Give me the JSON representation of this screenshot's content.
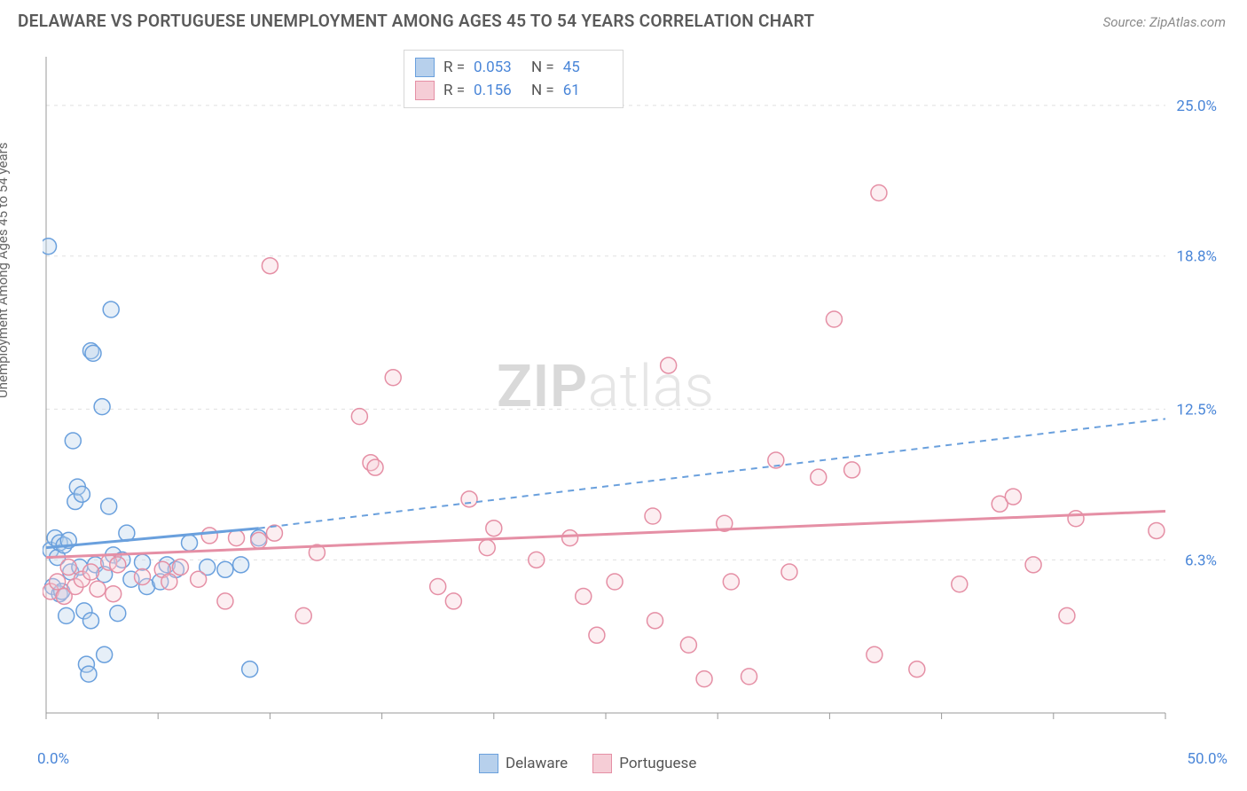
{
  "title": "DELAWARE VS PORTUGUESE UNEMPLOYMENT AMONG AGES 45 TO 54 YEARS CORRELATION CHART",
  "source": "Source: ZipAtlas.com",
  "y_axis_label": "Unemployment Among Ages 45 to 54 years",
  "watermark_bold": "ZIP",
  "watermark_light": "atlas",
  "chart": {
    "type": "scatter",
    "x_range": [
      0,
      50
    ],
    "y_range": [
      0,
      27
    ],
    "x_ticks": [
      0,
      5,
      10,
      15,
      20,
      25,
      30,
      35,
      40,
      45,
      50
    ],
    "y_gridlines": [
      6.3,
      12.5,
      18.8,
      25.0
    ],
    "x_axis_labels": [
      {
        "pos": 0,
        "text": "0.0%"
      },
      {
        "pos": 50,
        "text": "50.0%"
      }
    ],
    "y_axis_labels": [
      {
        "pos": 6.3,
        "text": "6.3%"
      },
      {
        "pos": 12.5,
        "text": "12.5%"
      },
      {
        "pos": 18.8,
        "text": "18.8%"
      },
      {
        "pos": 25.0,
        "text": "25.0%"
      }
    ],
    "grid_color": "#e0e0e0",
    "axis_color": "#999999",
    "marker_radius": 9,
    "marker_stroke_width": 1.5,
    "marker_fill_opacity": 0.35,
    "background_color": "#ffffff"
  },
  "series": [
    {
      "name": "Delaware",
      "color_stroke": "#6aa0dd",
      "color_fill": "#b7d0ec",
      "R": "0.053",
      "N": "45",
      "trend": {
        "x1": 0,
        "y1": 6.8,
        "x2": 9.5,
        "y2": 7.6,
        "dash_from_x": 9.5,
        "dash_to_x": 50,
        "dash_to_y": 12.1,
        "stroke_width": 3
      },
      "points": [
        [
          0.1,
          19.2
        ],
        [
          0.2,
          6.7
        ],
        [
          0.3,
          5.2
        ],
        [
          0.4,
          7.2
        ],
        [
          0.5,
          6.4
        ],
        [
          0.6,
          4.9
        ],
        [
          0.6,
          7.0
        ],
        [
          0.7,
          5.0
        ],
        [
          0.8,
          6.9
        ],
        [
          0.9,
          4.0
        ],
        [
          1.0,
          7.1
        ],
        [
          1.1,
          5.8
        ],
        [
          1.2,
          11.2
        ],
        [
          1.3,
          8.7
        ],
        [
          1.4,
          9.3
        ],
        [
          1.5,
          6.0
        ],
        [
          1.6,
          9.0
        ],
        [
          1.7,
          4.2
        ],
        [
          1.8,
          2.0
        ],
        [
          1.9,
          1.6
        ],
        [
          2.0,
          3.8
        ],
        [
          2.0,
          14.9
        ],
        [
          2.1,
          14.8
        ],
        [
          2.2,
          6.1
        ],
        [
          2.5,
          12.6
        ],
        [
          2.6,
          5.7
        ],
        [
          2.6,
          2.4
        ],
        [
          2.8,
          8.5
        ],
        [
          2.9,
          16.6
        ],
        [
          3.0,
          6.5
        ],
        [
          3.2,
          4.1
        ],
        [
          3.4,
          6.3
        ],
        [
          3.6,
          7.4
        ],
        [
          3.8,
          5.5
        ],
        [
          4.3,
          6.2
        ],
        [
          4.5,
          5.2
        ],
        [
          5.1,
          5.4
        ],
        [
          5.4,
          6.1
        ],
        [
          5.8,
          5.9
        ],
        [
          6.4,
          7.0
        ],
        [
          7.2,
          6.0
        ],
        [
          8.0,
          5.9
        ],
        [
          8.7,
          6.1
        ],
        [
          9.1,
          1.8
        ],
        [
          9.5,
          7.2
        ]
      ]
    },
    {
      "name": "Portuguese",
      "color_stroke": "#e58fa5",
      "color_fill": "#f5cdd6",
      "R": "0.156",
      "N": "61",
      "trend": {
        "x1": 0,
        "y1": 6.4,
        "x2": 50,
        "y2": 8.3,
        "stroke_width": 3
      },
      "points": [
        [
          0.2,
          5.0
        ],
        [
          0.5,
          5.4
        ],
        [
          0.8,
          4.8
        ],
        [
          1.0,
          6.0
        ],
        [
          1.3,
          5.2
        ],
        [
          1.6,
          5.5
        ],
        [
          2.0,
          5.8
        ],
        [
          2.3,
          5.1
        ],
        [
          2.8,
          6.2
        ],
        [
          3.0,
          4.9
        ],
        [
          3.2,
          6.1
        ],
        [
          4.3,
          5.6
        ],
        [
          5.2,
          5.9
        ],
        [
          5.5,
          5.4
        ],
        [
          6.0,
          6.0
        ],
        [
          6.8,
          5.5
        ],
        [
          7.3,
          7.3
        ],
        [
          8.0,
          4.6
        ],
        [
          8.5,
          7.2
        ],
        [
          9.5,
          7.1
        ],
        [
          10.0,
          18.4
        ],
        [
          10.2,
          7.4
        ],
        [
          11.5,
          4.0
        ],
        [
          12.1,
          6.6
        ],
        [
          14.0,
          12.2
        ],
        [
          14.5,
          10.3
        ],
        [
          14.7,
          10.1
        ],
        [
          15.5,
          13.8
        ],
        [
          17.5,
          5.2
        ],
        [
          18.2,
          4.6
        ],
        [
          18.9,
          8.8
        ],
        [
          19.7,
          6.8
        ],
        [
          20.0,
          7.6
        ],
        [
          21.9,
          6.3
        ],
        [
          23.4,
          7.2
        ],
        [
          24.0,
          4.8
        ],
        [
          24.6,
          3.2
        ],
        [
          25.4,
          5.4
        ],
        [
          27.1,
          8.1
        ],
        [
          27.2,
          3.8
        ],
        [
          27.8,
          14.3
        ],
        [
          28.7,
          2.8
        ],
        [
          29.4,
          1.4
        ],
        [
          30.3,
          7.8
        ],
        [
          30.6,
          5.4
        ],
        [
          31.4,
          1.5
        ],
        [
          32.6,
          10.4
        ],
        [
          33.2,
          5.8
        ],
        [
          34.5,
          9.7
        ],
        [
          35.2,
          16.2
        ],
        [
          36.0,
          10.0
        ],
        [
          37.0,
          2.4
        ],
        [
          37.2,
          21.4
        ],
        [
          38.9,
          1.8
        ],
        [
          40.8,
          5.3
        ],
        [
          42.6,
          8.6
        ],
        [
          43.2,
          8.9
        ],
        [
          44.1,
          6.1
        ],
        [
          45.6,
          4.0
        ],
        [
          46.0,
          8.0
        ],
        [
          49.6,
          7.5
        ]
      ]
    }
  ],
  "stat_legend_labels": {
    "R": "R =",
    "N": "N ="
  },
  "bottom_legend": [
    "Delaware",
    "Portuguese"
  ]
}
